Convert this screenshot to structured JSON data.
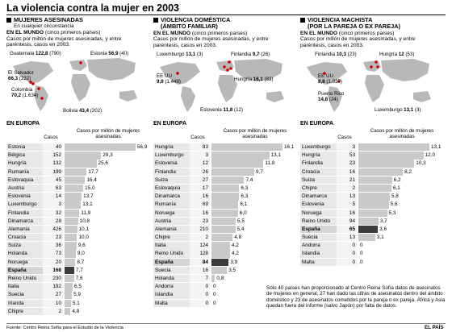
{
  "title": "La violencia contra la mujer en 2003",
  "sections": [
    {
      "heading": "MUJERES ASESINADAS",
      "subheading": "En cualquier circunstancia",
      "world_title": "EN EL MUNDO",
      "world_note": "(cinco primeros países)",
      "world_desc": "Casos por millón de mujeres asesinadas, y entre paréntesis, casos en 2003.",
      "map_labels": [
        {
          "name": "Guatemala",
          "rate": "122,8",
          "cases": "(790)"
        },
        {
          "name": "Estonia",
          "rate": "56,9",
          "cases": "(40)"
        },
        {
          "name": "El Salvador",
          "rate": "66,3",
          "cases": "(232)"
        },
        {
          "name": "Colombia",
          "rate": "70,2",
          "cases": "(1.634)"
        },
        {
          "name": "Bolivia",
          "rate": "43,4",
          "cases": "(202)"
        }
      ],
      "europe_title": "EN EUROPA"
    },
    {
      "heading": "VIOLENCIA DOMÉSTICA",
      "subheading": "(ÁMBITO FAMILIAR)",
      "world_title": "EN EL MUNDO",
      "world_note": "(cinco primeros países)",
      "world_desc": "Casos por millón de mujeres asesinadas, y entre paréntesis, casos en 2003.",
      "map_labels": [
        {
          "name": "Luxemburgo",
          "rate": "13,1",
          "cases": "(3)"
        },
        {
          "name": "Finlandia",
          "rate": "9,7",
          "cases": "(26)"
        },
        {
          "name": "EE UU",
          "rate": "9,9",
          "cases": "(1.448)"
        },
        {
          "name": "Hungría",
          "rate": "16,1",
          "cases": "(83)"
        },
        {
          "name": "Eslovenia",
          "rate": "11,8",
          "cases": "(12)"
        }
      ],
      "europe_title": "EN EUROPA"
    },
    {
      "heading": "VIOLENCIA MACHISTA",
      "subheading": "(POR LA PAREJA O EX PAREJA)",
      "world_title": "EN EL MUNDO",
      "world_note": "(cinco primeros países)",
      "world_desc": "Casos por millón de mujeres asesinadas, y entre paréntesis, casos en 2003.",
      "map_labels": [
        {
          "name": "Finlandia",
          "rate": "10,3",
          "cases": "(23)"
        },
        {
          "name": "Hungría",
          "rate": "12",
          "cases": "(53)"
        },
        {
          "name": "EE UU",
          "rate": "8,8",
          "cases": "(1.037)"
        },
        {
          "name": "Puerto Rico",
          "rate": "14,8",
          "cases": "(24)"
        },
        {
          "name": "Luxemburgo",
          "rate": "13,1",
          "cases": "(3)"
        }
      ],
      "europe_title": "EN EUROPA"
    }
  ],
  "table_headers": {
    "cases": "Casos",
    "rate": "Casos por millón de mujeres asesinadas"
  },
  "chart_data": [
    {
      "type": "bar",
      "title": "MUJERES ASESINADAS — EN EUROPA",
      "categories": [
        "Estonia",
        "Bélgica",
        "Hungría",
        "Rumanía",
        "Eslovaquia",
        "Austria",
        "Eslovenia",
        "Luxemburgo",
        "Finlandia",
        "Dinamarca",
        "Alemania",
        "Croacia",
        "Suiza",
        "Holanda",
        "Noruega",
        "España",
        "Reino Unido",
        "Italia",
        "Suecia",
        "Irlanda",
        "Chipre"
      ],
      "cases": [
        "40",
        "152",
        "132",
        "199",
        "45",
        "63",
        "14",
        "3",
        "32",
        "28",
        "426",
        "23",
        "36",
        "73",
        "20",
        "168",
        "230",
        "192",
        "27",
        "10",
        "2"
      ],
      "values": [
        56.9,
        29.3,
        25.6,
        17.7,
        16.4,
        15.0,
        13.7,
        13.1,
        11.9,
        10.8,
        10.1,
        10.0,
        9.6,
        9.0,
        8.7,
        7.7,
        7.6,
        6.5,
        5.9,
        5.1,
        4.8
      ],
      "labels": [
        "56,9",
        "29,3",
        "25,6",
        "17,7",
        "16,4",
        "15,0",
        "13,7",
        "13,1",
        "11,9",
        "10,8",
        "10,1",
        "10,0",
        "9,6",
        "9,0",
        "8,7",
        "7,7",
        "7,6",
        "6,5",
        "5,9",
        "5,1",
        "4,8"
      ],
      "highlight": "España",
      "xlim": [
        0,
        57
      ]
    },
    {
      "type": "bar",
      "title": "VIOLENCIA DOMÉSTICA — EN EUROPA",
      "categories": [
        "Hungría",
        "Luxemburgo",
        "Eslovenia",
        "Finlandia",
        "Suiza",
        "Eslovaquia",
        "Dinamarca",
        "Rumanía",
        "Noruega",
        "Austria",
        "Alemania",
        "Chipre",
        "Italia",
        "Reino Unido",
        "España",
        "Suecia",
        "Holanda",
        "Andorra",
        "Islandia",
        "Malta"
      ],
      "cases": [
        "83",
        "3",
        "12",
        "26",
        "27",
        "17",
        "16",
        "69",
        "16",
        "23",
        "210",
        "2",
        "124",
        "128",
        "84",
        "16",
        "7",
        "0",
        "0",
        "0"
      ],
      "values": [
        16.1,
        13.1,
        11.8,
        9.7,
        7.4,
        6.3,
        6.3,
        6.1,
        6.0,
        5.5,
        5.4,
        4.8,
        4.2,
        4.2,
        3.9,
        3.5,
        0.8,
        0,
        0,
        0
      ],
      "labels": [
        "16,1",
        "13,1",
        "11,8",
        "9,7",
        "7,4",
        "6,3",
        "6,3",
        "6,1",
        "6,0",
        "5,5",
        "5,4",
        "4,8",
        "4,2",
        "4,2",
        "3,9",
        "3,5",
        "0,8",
        "0",
        "0",
        "0"
      ],
      "highlight": "España",
      "xlim": [
        0,
        16.1
      ]
    },
    {
      "type": "bar",
      "title": "VIOLENCIA MACHISTA — EN EUROPA",
      "categories": [
        "Luxemburgo",
        "Hungría",
        "Finlandia",
        "Croacia",
        "Suiza",
        "Chipre",
        "Dinamarca",
        "Eslovenia",
        "Noruega",
        "Reino Unido",
        "España",
        "Suecia",
        "Andorra",
        "Islandia",
        "Malta"
      ],
      "cases": [
        "3",
        "53",
        "23",
        "16",
        "21",
        "2",
        "13",
        "5",
        "16",
        "94",
        "65",
        "13",
        "0",
        "0",
        "0"
      ],
      "values": [
        13.1,
        12.0,
        10.3,
        8.2,
        6.2,
        6.1,
        5.8,
        5.6,
        5.3,
        3.7,
        3.6,
        3.1,
        0,
        0,
        0
      ],
      "labels": [
        "13,1",
        "12,0",
        "10,3",
        "8,2",
        "6,2",
        "6,1",
        "5,8",
        "5,6",
        "5,3",
        "3,7",
        "3,6",
        "3,1",
        "0",
        "0",
        "0"
      ],
      "highlight": "España",
      "xlim": [
        0,
        13.1
      ]
    }
  ],
  "note": "Sólo 40 países han proporcionado al Centro Reina Sofía datos de asesinatos de mujeres en general, 27 han dado las cifras de asesinatos dentro del ámbito doméstico y 23 de asesinatos cometidos por la pareja o ex pareja. África y Asia quedan fuera del informe (salvo Japón) por falta de datos.",
  "source": "Fuente: Centro Reina Sofía para el Estudio de la Violencia",
  "logo": "EL PAÍS"
}
